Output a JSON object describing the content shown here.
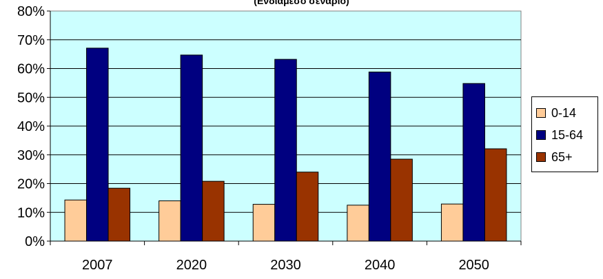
{
  "chart_data": {
    "type": "bar",
    "subtitle": "(Ενδιάμεσο σενάριο)",
    "categories": [
      "2007",
      "2020",
      "2030",
      "2040",
      "2050"
    ],
    "series": [
      {
        "name": "0-14",
        "color": "#FFCC99",
        "values": [
          0.143,
          0.14,
          0.128,
          0.125,
          0.129
        ]
      },
      {
        "name": "15-64",
        "color": "#000080",
        "values": [
          0.671,
          0.647,
          0.632,
          0.588,
          0.548
        ]
      },
      {
        "name": "65+",
        "color": "#993300",
        "values": [
          0.184,
          0.208,
          0.24,
          0.285,
          0.321
        ]
      }
    ],
    "ylim": [
      0,
      0.8
    ],
    "yticks": [
      "0%",
      "10%",
      "20%",
      "30%",
      "40%",
      "50%",
      "60%",
      "70%",
      "80%"
    ],
    "grid": true,
    "legend_position": "right",
    "plot_background": "#CCFFFF"
  }
}
